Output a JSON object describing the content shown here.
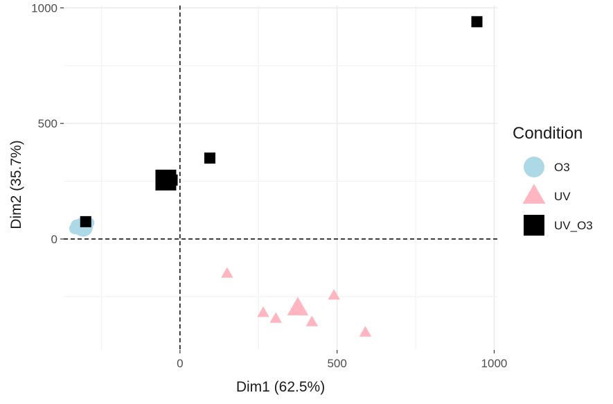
{
  "chart_data": {
    "type": "scatter",
    "title": "",
    "xlabel": "Dim1 (62.5%)",
    "ylabel": "Dim2 (35.7%)",
    "xlim": [
      -370,
      1010
    ],
    "ylim": [
      -480,
      1010
    ],
    "x_ticks": [
      0,
      500,
      1000
    ],
    "x_tick_labels": [
      "0",
      "500",
      "1000"
    ],
    "y_ticks": [
      0,
      500,
      1000
    ],
    "y_tick_labels": [
      "0",
      "500",
      "1000"
    ],
    "grid": true,
    "reference_lines": {
      "x": 0,
      "y": 0,
      "style": "dashed"
    },
    "legend": {
      "title": "Condition",
      "position": "right",
      "entries": [
        {
          "label": "O3",
          "shape": "circle",
          "color": "#add8e6"
        },
        {
          "label": "UV",
          "shape": "triangle",
          "color": "#ffb6c1"
        },
        {
          "label": "UV_O3",
          "shape": "square",
          "color": "#000000"
        }
      ]
    },
    "series": [
      {
        "name": "O3",
        "shape": "circle",
        "color": "#add8e6",
        "points": [
          {
            "x": -330,
            "y": 60,
            "size": "small"
          },
          {
            "x": -290,
            "y": 70,
            "size": "small"
          },
          {
            "x": -310,
            "y": 55,
            "size": "small"
          },
          {
            "x": -320,
            "y": 40,
            "size": "small"
          },
          {
            "x": -300,
            "y": 45,
            "size": "small"
          },
          {
            "x": -335,
            "y": 45,
            "size": "small"
          },
          {
            "x": -315,
            "y": 60,
            "size": "small"
          },
          {
            "x": -308,
            "y": 52,
            "size": "centroid"
          }
        ]
      },
      {
        "name": "UV",
        "shape": "triangle",
        "color": "#ffb6c1",
        "points": [
          {
            "x": 150,
            "y": -150,
            "size": "small"
          },
          {
            "x": 265,
            "y": -320,
            "size": "small"
          },
          {
            "x": 305,
            "y": -345,
            "size": "small"
          },
          {
            "x": 420,
            "y": -360,
            "size": "small"
          },
          {
            "x": 490,
            "y": -245,
            "size": "small"
          },
          {
            "x": 590,
            "y": -405,
            "size": "small"
          },
          {
            "x": 375,
            "y": -300,
            "size": "centroid"
          }
        ]
      },
      {
        "name": "UV_O3",
        "shape": "square",
        "color": "#000000",
        "points": [
          {
            "x": -300,
            "y": 75,
            "size": "small"
          },
          {
            "x": -25,
            "y": 255,
            "size": "small"
          },
          {
            "x": 95,
            "y": 350,
            "size": "small"
          },
          {
            "x": 945,
            "y": 940,
            "size": "small"
          },
          {
            "x": -45,
            "y": 255,
            "size": "centroid"
          }
        ]
      }
    ]
  }
}
